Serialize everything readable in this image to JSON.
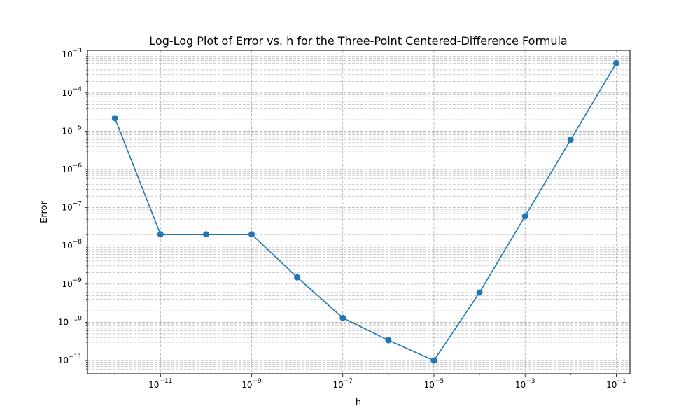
{
  "chart_data": {
    "type": "line",
    "title": "Log-Log Plot of Error vs. h for the Three-Point Centered-Difference Formula",
    "xlabel": "h",
    "ylabel": "Error",
    "xscale": "log",
    "yscale": "log",
    "xlim": [
      2.5e-13,
      0.2
    ],
    "ylim": [
      4.5e-12,
      0.0013
    ],
    "grid": true,
    "grid_minor": true,
    "line_color": "#1f77b4",
    "marker": "circle",
    "x_tick_labels": [
      {
        "base": "10",
        "exp": "−11",
        "value": 1e-11
      },
      {
        "base": "10",
        "exp": "−9",
        "value": 1e-09
      },
      {
        "base": "10",
        "exp": "−7",
        "value": 1e-07
      },
      {
        "base": "10",
        "exp": "−5",
        "value": 1e-05
      },
      {
        "base": "10",
        "exp": "−3",
        "value": 0.001
      },
      {
        "base": "10",
        "exp": "−1",
        "value": 0.1
      }
    ],
    "y_tick_labels": [
      {
        "base": "10",
        "exp": "−11",
        "value": 1e-11
      },
      {
        "base": "10",
        "exp": "−10",
        "value": 1e-10
      },
      {
        "base": "10",
        "exp": "−9",
        "value": 1e-09
      },
      {
        "base": "10",
        "exp": "−8",
        "value": 1e-08
      },
      {
        "base": "10",
        "exp": "−7",
        "value": 1e-07
      },
      {
        "base": "10",
        "exp": "−6",
        "value": 1e-06
      },
      {
        "base": "10",
        "exp": "−5",
        "value": 1e-05
      },
      {
        "base": "10",
        "exp": "−4",
        "value": 0.0001
      },
      {
        "base": "10",
        "exp": "−3",
        "value": 0.001
      }
    ],
    "series": [
      {
        "x": [
          1e-12,
          1e-11,
          1e-10,
          1e-09,
          1e-08,
          1e-07,
          1e-06,
          1e-05,
          0.0001,
          0.001,
          0.01,
          0.1
        ],
        "y": [
          2.2e-05,
          2e-08,
          2e-08,
          2e-08,
          1.5e-09,
          1.3e-10,
          3.4e-11,
          1e-11,
          6e-10,
          6e-08,
          6e-06,
          0.0006
        ]
      }
    ]
  }
}
